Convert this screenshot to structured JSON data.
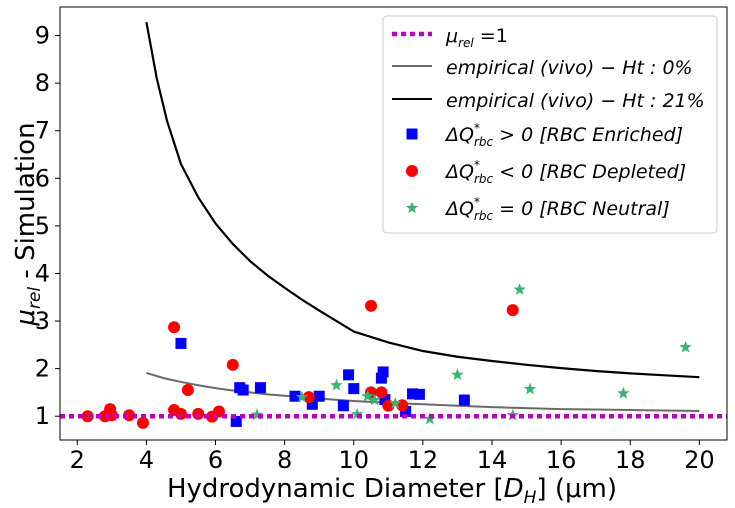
{
  "chart_data": {
    "type": "scatter",
    "xlabel_parts": [
      "Hydrodynamic Diameter [",
      "D",
      "H",
      "] (μm)"
    ],
    "ylabel_parts": [
      "μ",
      "rel",
      " - Simulation"
    ],
    "xlim": [
      1.5,
      20.8
    ],
    "ylim": [
      0.5,
      9.6
    ],
    "x_ticks": [
      2,
      4,
      6,
      8,
      10,
      12,
      14,
      16,
      18,
      20
    ],
    "y_ticks": [
      1,
      2,
      3,
      4,
      5,
      6,
      7,
      8,
      9
    ],
    "grid": false,
    "legend_position": "top-right",
    "colors": {
      "reference": "#bf00bf",
      "ht0": "#696969",
      "ht21": "#000000",
      "enriched": "#0000ff",
      "depleted": "#ff0000",
      "neutral": "#3cb371"
    },
    "legend": [
      {
        "key": "reference",
        "marker": "dotted-line",
        "main": "μ",
        "sub": "rel",
        "rest": " =1"
      },
      {
        "key": "ht0",
        "marker": "line",
        "main": "empirical (vivo) − Ht : 0%"
      },
      {
        "key": "ht21",
        "marker": "line",
        "main": "empirical (vivo) − Ht : 21%"
      },
      {
        "key": "enriched",
        "marker": "square",
        "main": "ΔQ",
        "sup": "*",
        "sub": "rbc",
        "rest": " > 0  [RBC Enriched]"
      },
      {
        "key": "depleted",
        "marker": "circle",
        "main": "ΔQ",
        "sup": "*",
        "sub": "rbc",
        "rest": " < 0  [RBC Depleted]"
      },
      {
        "key": "neutral",
        "marker": "star",
        "main": "ΔQ",
        "sup": "*",
        "sub": "rbc",
        "rest": " = 0  [RBC Neutral]"
      }
    ],
    "reference_line": {
      "y": 1.0
    },
    "curves": [
      {
        "key": "ht0",
        "x": [
          4.0,
          4.5,
          5,
          5.5,
          6,
          6.5,
          7,
          7.5,
          8,
          9,
          10,
          11,
          12,
          13,
          14,
          15,
          16,
          17,
          18,
          19,
          20
        ],
        "y": [
          1.91,
          1.8,
          1.72,
          1.65,
          1.59,
          1.54,
          1.5,
          1.46,
          1.43,
          1.37,
          1.32,
          1.28,
          1.25,
          1.22,
          1.19,
          1.17,
          1.15,
          1.14,
          1.13,
          1.12,
          1.11
        ]
      },
      {
        "key": "ht21",
        "x": [
          4.0,
          4.3,
          4.6,
          5.0,
          5.5,
          6.0,
          6.5,
          7.0,
          7.5,
          8.0,
          8.5,
          9.0,
          10,
          11,
          12,
          13,
          14,
          15,
          16,
          17,
          18,
          19,
          20
        ],
        "y": [
          9.28,
          8.1,
          7.2,
          6.3,
          5.6,
          5.05,
          4.62,
          4.26,
          3.96,
          3.7,
          3.45,
          3.22,
          2.78,
          2.55,
          2.37,
          2.25,
          2.16,
          2.08,
          2.01,
          1.95,
          1.9,
          1.86,
          1.82
        ]
      }
    ],
    "series": [
      {
        "key": "enriched",
        "x": [
          5.0,
          6.6,
          6.7,
          6.8,
          7.3,
          8.3,
          8.8,
          9.0,
          9.7,
          9.85,
          10.0,
          10.8,
          10.85,
          10.9,
          11.5,
          11.7,
          11.9,
          13.2
        ],
        "y": [
          2.53,
          0.89,
          1.6,
          1.55,
          1.6,
          1.42,
          1.25,
          1.42,
          1.22,
          1.87,
          1.58,
          1.8,
          1.93,
          1.35,
          1.1,
          1.47,
          1.46,
          1.34
        ]
      },
      {
        "key": "depleted",
        "x": [
          2.3,
          2.8,
          2.95,
          3.0,
          3.5,
          3.9,
          4.8,
          4.8,
          5.0,
          5.2,
          5.5,
          5.9,
          6.1,
          6.5,
          8.7,
          10.5,
          10.5,
          10.8,
          11.0,
          11.4,
          14.6
        ],
        "y": [
          1.0,
          1.0,
          1.15,
          1.02,
          1.02,
          0.86,
          2.87,
          1.13,
          1.05,
          1.55,
          1.05,
          0.99,
          1.1,
          2.08,
          1.4,
          3.32,
          1.5,
          1.5,
          1.22,
          1.23,
          3.23
        ]
      },
      {
        "key": "neutral",
        "x": [
          7.2,
          8.5,
          9.5,
          10.1,
          10.4,
          10.6,
          11.2,
          12.2,
          13.0,
          14.6,
          14.8,
          15.1,
          17.8,
          19.6
        ],
        "y": [
          1.03,
          1.4,
          1.65,
          1.04,
          1.42,
          1.34,
          1.27,
          0.94,
          1.87,
          1.02,
          3.66,
          1.57,
          1.48,
          2.45
        ]
      }
    ]
  }
}
